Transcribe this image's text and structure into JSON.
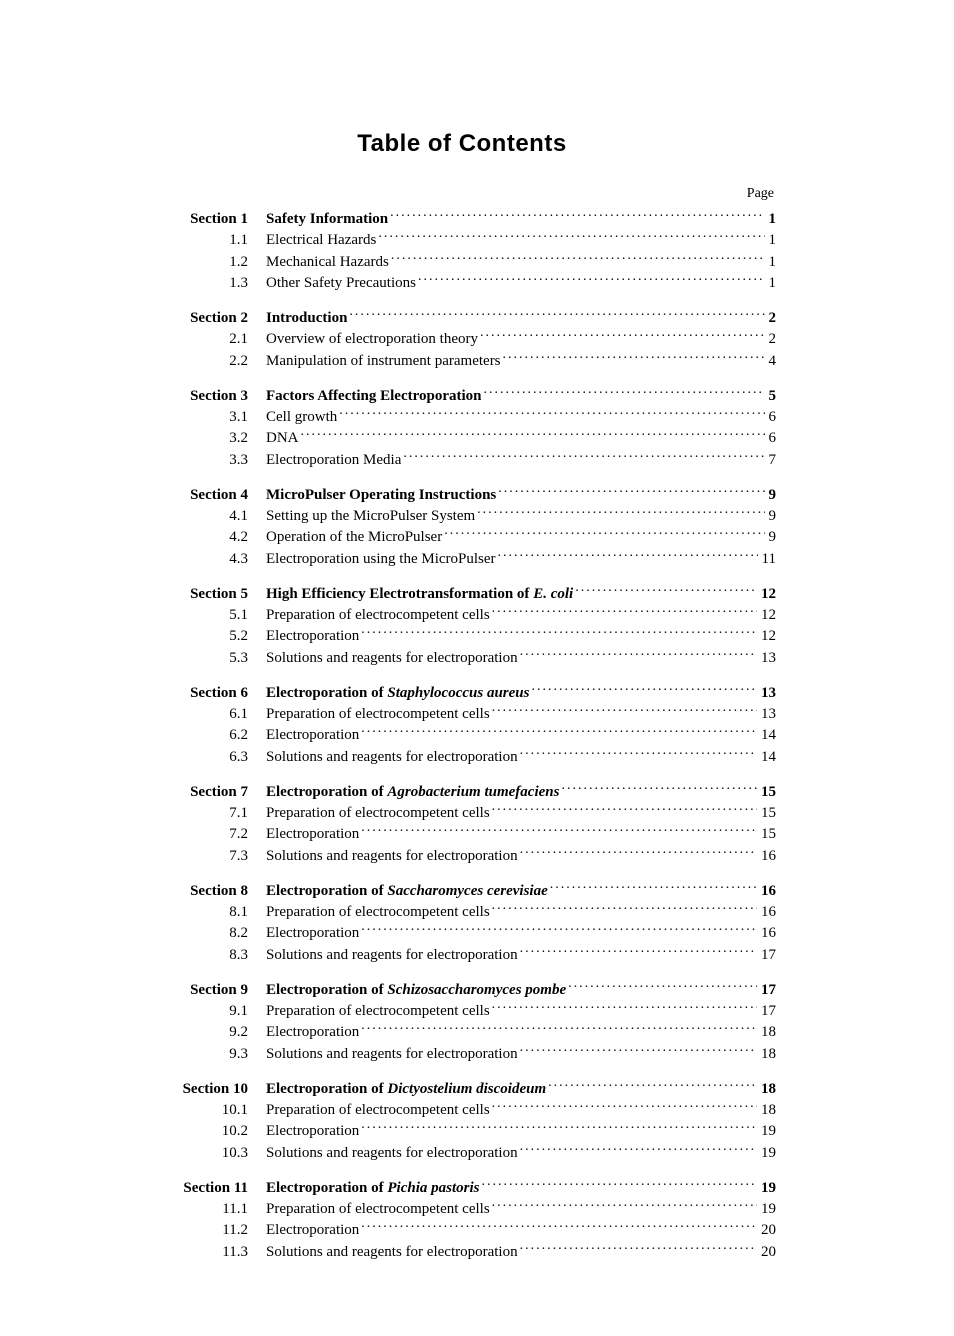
{
  "title": "Table of Contents",
  "page_label": "Page",
  "text_color": "#000000",
  "background_color": "#ffffff",
  "title_font": "Arial",
  "body_font": "Times New Roman",
  "title_fontsize": 24,
  "body_fontsize": 15,
  "sections": [
    {
      "label": "Section 1",
      "title_parts": [
        {
          "text": "Safety Information",
          "italic": false
        }
      ],
      "page": "1",
      "subs": [
        {
          "num": "1.1",
          "title": "Electrical Hazards",
          "page": "1"
        },
        {
          "num": "1.2",
          "title": "Mechanical Hazards",
          "page": "1"
        },
        {
          "num": "1.3",
          "title": "Other Safety Precautions",
          "page": "1"
        }
      ]
    },
    {
      "label": "Section 2",
      "title_parts": [
        {
          "text": "Introduction",
          "italic": false
        }
      ],
      "page": "2",
      "subs": [
        {
          "num": "2.1",
          "title": "Overview of electroporation theory",
          "page": "2"
        },
        {
          "num": "2.2",
          "title": "Manipulation of instrument parameters",
          "page": "4"
        }
      ]
    },
    {
      "label": "Section 3",
      "title_parts": [
        {
          "text": "Factors Affecting Electroporation ",
          "italic": false
        }
      ],
      "page": "5",
      "subs": [
        {
          "num": "3.1",
          "title": "Cell growth",
          "page": "6"
        },
        {
          "num": "3.2",
          "title": "DNA",
          "page": "6"
        },
        {
          "num": "3.3",
          "title": "Electroporation Media",
          "page": "7"
        }
      ]
    },
    {
      "label": "Section 4",
      "title_parts": [
        {
          "text": "MicroPulser Operating Instructions",
          "italic": false
        }
      ],
      "page": "9",
      "subs": [
        {
          "num": "4.1",
          "title": "Setting up the MicroPulser System",
          "page": "9"
        },
        {
          "num": "4.2",
          "title": "Operation of the MicroPulser",
          "page": "9"
        },
        {
          "num": "4.3",
          "title": "Electroporation using the MicroPulser ",
          "page": "11"
        }
      ]
    },
    {
      "label": "Section 5",
      "title_parts": [
        {
          "text": "High Efficiency Electrotransformation of ",
          "italic": false
        },
        {
          "text": "E. coli",
          "italic": true
        }
      ],
      "page": "12",
      "subs": [
        {
          "num": "5.1",
          "title": "Preparation of electrocompetent cells",
          "page": "12"
        },
        {
          "num": "5.2",
          "title": "Electroporation",
          "page": "12"
        },
        {
          "num": "5.3",
          "title": "Solutions and reagents for electroporation ",
          "page": "13"
        }
      ]
    },
    {
      "label": "Section 6",
      "title_parts": [
        {
          "text": "Electroporation of ",
          "italic": false
        },
        {
          "text": "Staphylococcus aureus",
          "italic": true
        }
      ],
      "page": "13",
      "subs": [
        {
          "num": "6.1",
          "title": "Preparation of electrocompetent cells",
          "page": "13"
        },
        {
          "num": "6.2",
          "title": "Electroporation",
          "page": "14"
        },
        {
          "num": "6.3",
          "title": "Solutions and reagents for electroporation ",
          "page": "14"
        }
      ]
    },
    {
      "label": "Section 7",
      "title_parts": [
        {
          "text": "Electroporation of ",
          "italic": false
        },
        {
          "text": "Agrobacterium  tumefaciens ",
          "italic": true
        }
      ],
      "page": "15",
      "subs": [
        {
          "num": "7.1",
          "title": "Preparation of electrocompetent cells",
          "page": "15"
        },
        {
          "num": "7.2",
          "title": "Electroporation",
          "page": "15"
        },
        {
          "num": "7.3",
          "title": "Solutions and reagents for electroporation ",
          "page": "16"
        }
      ]
    },
    {
      "label": "Section 8",
      "title_parts": [
        {
          "text": "Electroporation of ",
          "italic": false
        },
        {
          "text": "Saccharomyces cerevisiae",
          "italic": true
        }
      ],
      "page": "16",
      "subs": [
        {
          "num": "8.1",
          "title": "Preparation of electrocompetent cells",
          "page": "16"
        },
        {
          "num": "8.2",
          "title": "Electroporation",
          "page": "16"
        },
        {
          "num": "8.3",
          "title": "Solutions and reagents for electroporation ",
          "page": "17"
        }
      ]
    },
    {
      "label": "Section 9",
      "title_parts": [
        {
          "text": "Electroporation of ",
          "italic": false
        },
        {
          "text": "Schizosaccharomyces pombe",
          "italic": true
        }
      ],
      "page": "17",
      "subs": [
        {
          "num": "9.1",
          "title": "Preparation of electrocompetent cells",
          "page": "17"
        },
        {
          "num": "9.2",
          "title": "Electroporation",
          "page": "18"
        },
        {
          "num": "9.3",
          "title": "Solutions and reagents for electroporation ",
          "page": "18"
        }
      ]
    },
    {
      "label": "Section 10",
      "title_parts": [
        {
          "text": "Electroporation of ",
          "italic": false
        },
        {
          "text": "Dictyostelium discoideum ",
          "italic": true
        }
      ],
      "page": "18",
      "subs": [
        {
          "num": "10.1",
          "title": "Preparation of electrocompetent cells",
          "page": "18"
        },
        {
          "num": "10.2",
          "title": "Electroporation",
          "page": "19"
        },
        {
          "num": "10.3",
          "title": "Solutions and reagents for electroporation ",
          "page": "19"
        }
      ]
    },
    {
      "label": "Section 11",
      "title_parts": [
        {
          "text": "Electroporation of ",
          "italic": false
        },
        {
          "text": "Pichia pastoris ",
          "italic": true
        }
      ],
      "page": "19",
      "subs": [
        {
          "num": "11.1",
          "title": "Preparation of electrocompetent cells",
          "page": "19"
        },
        {
          "num": "11.2",
          "title": "Electroporation",
          "page": "20"
        },
        {
          "num": "11.3",
          "title": "Solutions and reagents for electroporation ",
          "page": "20"
        }
      ]
    }
  ]
}
